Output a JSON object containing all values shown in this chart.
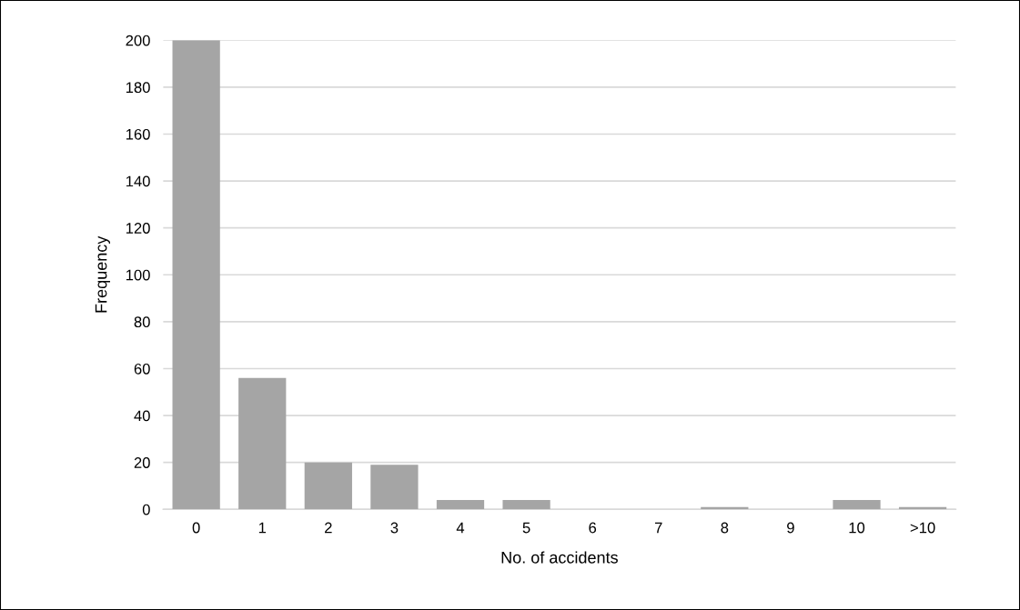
{
  "chart_data": {
    "type": "bar",
    "xlabel": "No. of accidents",
    "ylabel": "Frequency",
    "categories": [
      "0",
      "1",
      "2",
      "3",
      "4",
      "5",
      "6",
      "7",
      "8",
      "9",
      "10",
      ">10"
    ],
    "values": [
      200,
      56,
      20,
      19,
      4,
      4,
      0,
      0,
      1,
      0,
      4,
      1
    ],
    "color": "#a5a5a5",
    "ylim": [
      0,
      200
    ],
    "yticks": [
      0,
      20,
      40,
      60,
      80,
      100,
      120,
      140,
      160,
      180,
      200
    ],
    "grid": "y"
  }
}
